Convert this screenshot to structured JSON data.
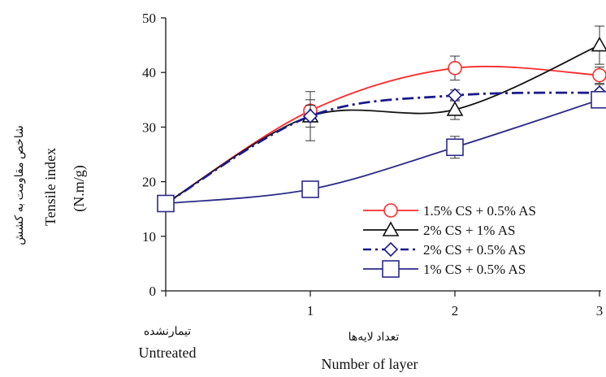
{
  "chart_data": {
    "type": "line",
    "categories": [
      "Untreated",
      "1",
      "2",
      "3"
    ],
    "x_tick_labels": [
      "",
      "1",
      "2",
      "3"
    ],
    "x_tick_label_untreated_fa": "تیمارنشده",
    "x_tick_label_untreated_en": "Untreated",
    "xlabel_fa": "تعداد لایه‌ها",
    "xlabel": "Number of layer",
    "ylabel_fa": "شاخص مقاومت به کشش",
    "ylabel": "Tensile index",
    "ylabel_unit": "(N.m/g)",
    "ylim": [
      0,
      50
    ],
    "y_ticks": [
      "0",
      "10",
      "20",
      "30",
      "40",
      "50"
    ],
    "legend_position": "right-middle",
    "series": [
      {
        "name": "1.5% CS + 0.5% AS",
        "marker": "circle",
        "line_style": "solid",
        "color": "#ff2a2a",
        "values": [
          16,
          33,
          40.8,
          39.5
        ],
        "errors": [
          0,
          2.0,
          2.2,
          1.5
        ]
      },
      {
        "name": "2% CS + 1% AS",
        "marker": "triangle",
        "line_style": "solid",
        "color": "#111111",
        "values": [
          16,
          32,
          33.2,
          45
        ],
        "errors": [
          0,
          2.0,
          1.8,
          3.5
        ]
      },
      {
        "name": "2% CS + 0.5% AS",
        "marker": "diamond",
        "line_style": "dash-dot",
        "color": "#1a1a8c",
        "values": [
          16,
          32,
          35.8,
          36.3
        ],
        "errors": [
          0,
          4.5,
          1.0,
          1.5
        ]
      },
      {
        "name": "1% CS + 0.5% AS",
        "marker": "square",
        "line_style": "solid",
        "color": "#2a2a8a",
        "values": [
          16,
          18.6,
          26.3,
          35
        ],
        "errors": [
          0,
          0.5,
          2.0,
          1.5
        ]
      }
    ]
  }
}
